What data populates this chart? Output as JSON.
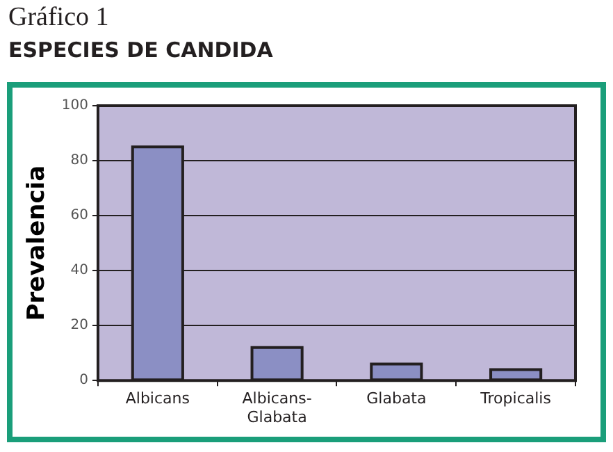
{
  "chart_data": {
    "type": "bar",
    "title": "Gráfico 1",
    "subtitle": "ESPECIES DE CANDIDA",
    "ylabel": "Prevalencia",
    "categories": [
      "Albicans",
      "Albicans-Glabata",
      "Glabata",
      "Tropicalis"
    ],
    "values": [
      85,
      12,
      6,
      4
    ],
    "color": "#8b8fc4",
    "ylim": [
      0,
      100
    ],
    "yticks": [
      0,
      20,
      40,
      60,
      80,
      100
    ],
    "grid": "y"
  }
}
